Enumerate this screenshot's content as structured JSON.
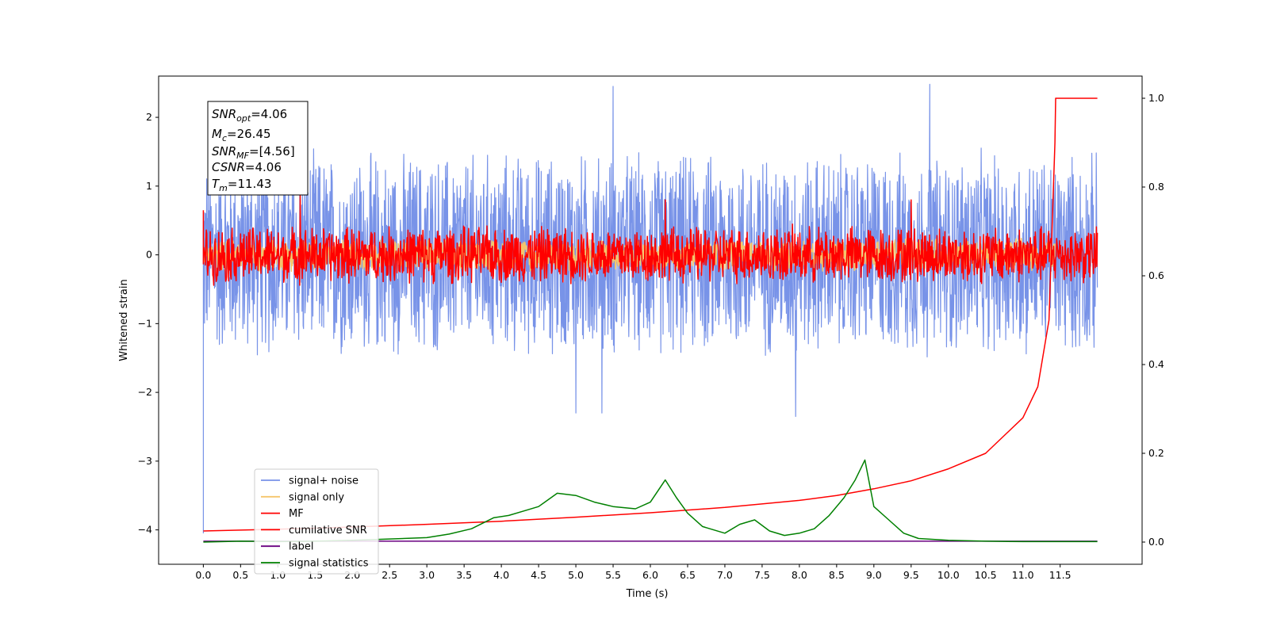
{
  "chart_data": {
    "type": "line",
    "xlabel": "Time (s)",
    "ylabel": "Whitened strain",
    "xlim": [
      -0.6,
      12.6
    ],
    "ylim": [
      -4.5,
      2.6
    ],
    "ylim_right": [
      -0.05,
      1.05
    ],
    "x_ticks": [
      "0.0",
      "0.5",
      "1.0",
      "1.5",
      "2.0",
      "2.5",
      "3.0",
      "3.5",
      "4.0",
      "4.5",
      "5.0",
      "5.5",
      "6.0",
      "6.5",
      "7.0",
      "7.5",
      "8.0",
      "8.5",
      "9.0",
      "9.5",
      "10.0",
      "10.5",
      "11.0",
      "11.5"
    ],
    "y_ticks_left": [
      "2",
      "1",
      "0",
      "−1",
      "−2",
      "−3",
      "−4"
    ],
    "y_ticks_right": [
      "1.0",
      "0.8",
      "0.6",
      "0.4",
      "0.2",
      "0.0"
    ],
    "grid": false,
    "legend_position": "lower-left",
    "annotation": {
      "snr_opt": {
        "name": "SNR",
        "sub": "opt",
        "value": "=4.06"
      },
      "mc": {
        "name": "M",
        "sub": "c",
        "value": "=26.45"
      },
      "snr_mf": {
        "name": "SNR",
        "sub": "MF",
        "value": "=[4.56]"
      },
      "csnr": {
        "name": "CSNR",
        "value": "=4.06"
      },
      "tm": {
        "name": "T",
        "sub": "m",
        "value": "=11.43"
      }
    },
    "series": [
      {
        "name": "signal+ noise",
        "color": "#7893e8",
        "axis": "left",
        "x_range": [
          0,
          12.0
        ],
        "amplitude": 1.6,
        "peaks": [
          [
            5.5,
            2.45
          ],
          [
            9.75,
            2.48
          ],
          [
            7.95,
            -2.35
          ],
          [
            5.0,
            -2.3
          ],
          [
            5.35,
            -2.3
          ]
        ]
      },
      {
        "name": "signal only",
        "color": "#f5c66b",
        "axis": "left",
        "x_range": [
          0,
          11.43
        ],
        "amplitude": 0.25
      },
      {
        "name": "MF",
        "color": "#ff0000",
        "axis": "left",
        "x_range": [
          0,
          12.0
        ],
        "amplitude": 0.45,
        "peaks": [
          [
            1.3,
            0.9
          ],
          [
            6.2,
            0.8
          ],
          [
            9.5,
            0.8
          ]
        ]
      },
      {
        "name": "cumilative SNR",
        "color": "#ff0000",
        "axis": "right",
        "x": [
          0.0,
          1.0,
          2.0,
          3.0,
          4.0,
          5.0,
          6.0,
          7.0,
          8.0,
          8.5,
          9.0,
          9.5,
          10.0,
          10.5,
          11.0,
          11.2,
          11.35,
          11.43,
          11.44,
          12.0
        ],
        "y": [
          0.025,
          0.029,
          0.034,
          0.04,
          0.047,
          0.056,
          0.066,
          0.078,
          0.094,
          0.105,
          0.12,
          0.138,
          0.165,
          0.2,
          0.28,
          0.35,
          0.5,
          0.9,
          1.0,
          1.0
        ]
      },
      {
        "name": "label",
        "color": "#6a0080",
        "axis": "right",
        "x": [
          0.0,
          12.0
        ],
        "y": [
          0.002,
          0.002
        ]
      },
      {
        "name": "signal statistics",
        "color": "#008000",
        "axis": "right",
        "x": [
          0.0,
          0.5,
          1.0,
          1.5,
          2.0,
          2.5,
          3.0,
          3.3,
          3.6,
          3.9,
          4.1,
          4.3,
          4.5,
          4.75,
          5.0,
          5.25,
          5.5,
          5.8,
          6.0,
          6.2,
          6.35,
          6.5,
          6.7,
          7.0,
          7.2,
          7.4,
          7.6,
          7.8,
          8.0,
          8.2,
          8.4,
          8.6,
          8.75,
          8.88,
          9.0,
          9.2,
          9.4,
          9.6,
          10.0,
          10.5,
          11.0,
          12.0
        ],
        "y": [
          0.0,
          0.002,
          0.001,
          0.002,
          0.004,
          0.007,
          0.01,
          0.018,
          0.03,
          0.055,
          0.06,
          0.07,
          0.08,
          0.11,
          0.105,
          0.09,
          0.08,
          0.075,
          0.09,
          0.14,
          0.1,
          0.065,
          0.035,
          0.02,
          0.04,
          0.05,
          0.025,
          0.015,
          0.02,
          0.03,
          0.06,
          0.1,
          0.14,
          0.185,
          0.08,
          0.05,
          0.02,
          0.008,
          0.004,
          0.002,
          0.001,
          0.001
        ]
      }
    ]
  }
}
